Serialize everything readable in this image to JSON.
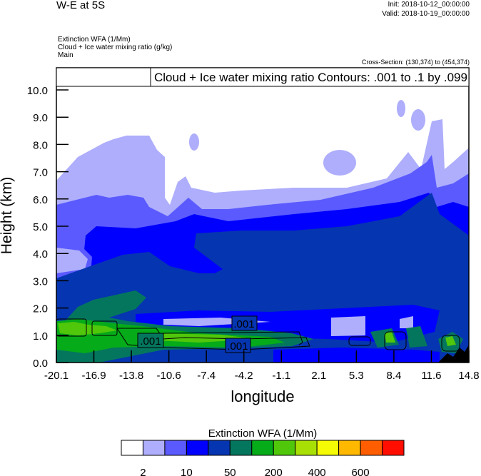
{
  "header": {
    "title": "W-E at 5S",
    "init": "Init: 2018-10-12_00:00:00",
    "valid": "Valid: 2018-10-19_00:00:00",
    "fields": [
      "Extinction WFA   (1/Mm)",
      "Cloud + Ice water mixing ratio   (g/kg)",
      "Main"
    ],
    "cross_section": "Cross-Section: (130,374) to (454,374)"
  },
  "chart_data": {
    "type": "heatmap",
    "subtype": "filled contour cross-section with line contours",
    "legend_text": "Cloud + Ice water mixing ratio Contours: .001 to .1 by .099",
    "xlabel": "longitude",
    "ylabel": "Height (km)",
    "xticks": [
      "-20.1",
      "-16.9",
      "-13.8",
      "-10.6",
      "-7.4",
      "-4.2",
      "-1.1",
      "2.1",
      "5.3",
      "8.4",
      "11.6",
      "14.8"
    ],
    "xlim": [
      -20.1,
      14.8
    ],
    "yticks": [
      "0.0",
      "1.0",
      "2.0",
      "3.0",
      "4.0",
      "5.0",
      "6.0",
      "7.0",
      "8.0",
      "9.0",
      "10.0"
    ],
    "ylim": [
      0,
      10.8
    ],
    "contour_labels": [
      ".001",
      ".001",
      ".001"
    ],
    "colorbar": {
      "title": "Extinction WFA  (1/Mm)",
      "colors": [
        "#ffffff",
        "#aeaefc",
        "#5a5aff",
        "#0000ff",
        "#0535b0",
        "#04765e",
        "#06ab19",
        "#50c70b",
        "#a8e006",
        "#f4fb04",
        "#ffb800",
        "#ff5e00",
        "#ff0e00"
      ],
      "labels": [
        "2",
        "10",
        "50",
        "200",
        "400",
        "600"
      ]
    }
  }
}
